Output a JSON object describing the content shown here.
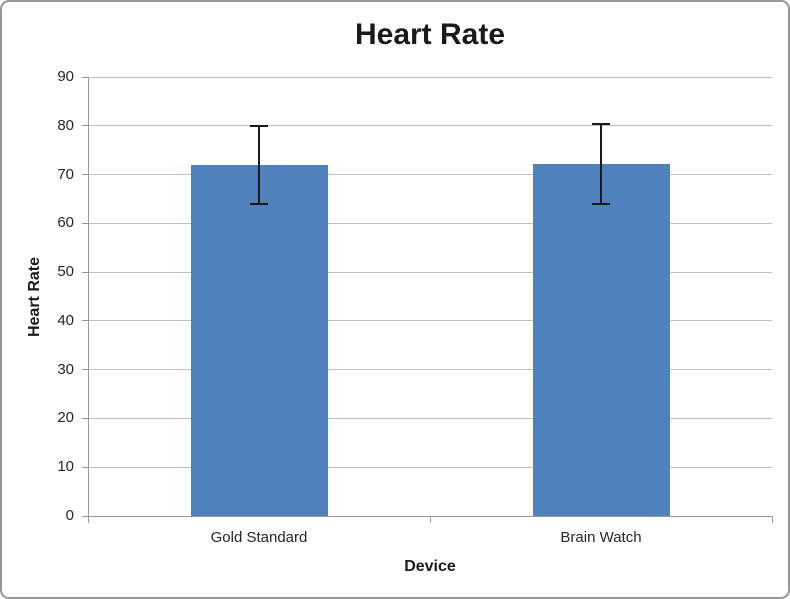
{
  "chart_data": {
    "type": "bar",
    "title": "Heart Rate",
    "xlabel": "Device",
    "ylabel": "Heart Rate",
    "categories": [
      "Gold Standard",
      "Brain Watch"
    ],
    "values": [
      72,
      72.2
    ],
    "error_bars": {
      "plus": [
        8,
        8.2
      ],
      "minus": [
        8,
        8.2
      ]
    },
    "ylim": [
      0,
      90
    ],
    "ytick_step": 10,
    "yticks": [
      0,
      10,
      20,
      30,
      40,
      50,
      60,
      70,
      80,
      90
    ],
    "grid": true,
    "legend_position": "none",
    "colors": {
      "bar_fill": "#4F81BD",
      "error_bar": "#1A1A1A",
      "gridline": "#BFBFBF",
      "axis_line": "#9A9A9A",
      "text": "#262626",
      "title_text": "#1A1A1A",
      "frame_border": "#969696",
      "background": "#FFFFFF"
    }
  }
}
